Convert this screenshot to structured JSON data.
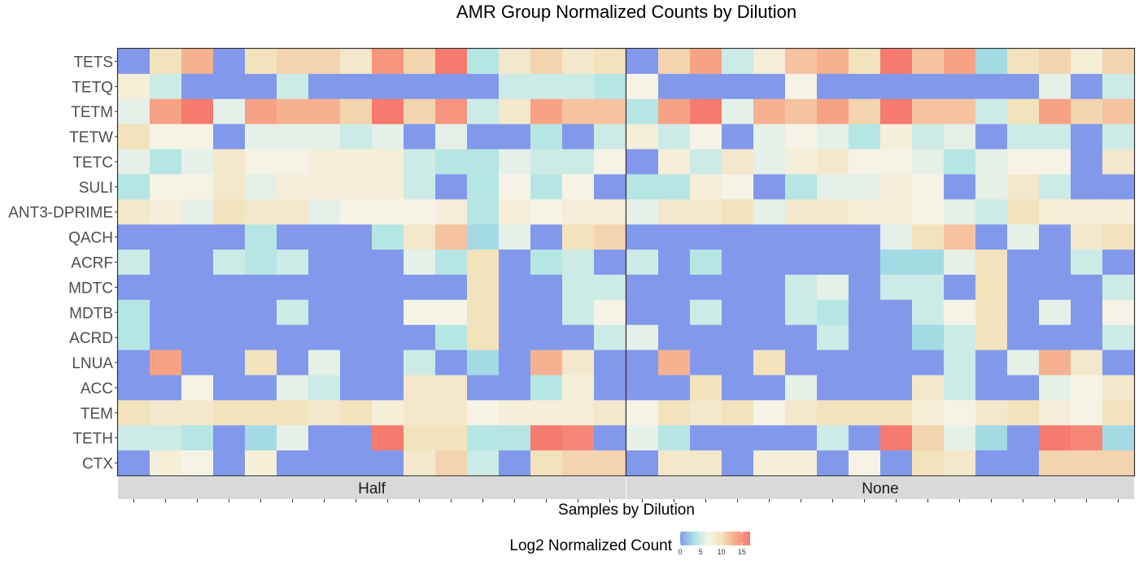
{
  "chart_data": {
    "type": "heatmap",
    "title": "AMR Group Normalized Counts by Dilution",
    "xlabel": "Samples by Dilution",
    "ylabel": "",
    "rows": [
      "TETS",
      "TETQ",
      "TETM",
      "TETW",
      "TETC",
      "SULI",
      "ANT3-DPRIME",
      "QACH",
      "ACRF",
      "MDTC",
      "MDTB",
      "ACRD",
      "LNUA",
      "ACC",
      "TEM",
      "TETH",
      "CTX"
    ],
    "panels": [
      {
        "name": "Half",
        "values": [
          [
            0,
            10,
            13,
            0,
            10,
            11,
            11,
            9,
            15,
            11,
            17,
            4,
            9,
            11,
            9,
            10
          ],
          [
            8,
            5,
            0,
            0,
            0,
            5,
            0,
            0,
            0,
            0,
            0,
            0,
            5,
            5,
            5,
            4
          ],
          [
            6,
            14,
            17,
            6,
            14,
            13,
            13,
            11,
            17,
            11,
            15,
            5,
            9,
            14,
            12,
            12
          ],
          [
            10,
            7,
            7,
            0,
            6,
            6,
            6,
            5,
            6,
            0,
            6,
            0,
            0,
            4,
            0,
            5
          ],
          [
            6,
            4,
            6,
            9,
            7,
            7,
            8,
            8,
            8,
            5,
            4,
            4,
            6,
            5,
            5,
            7
          ],
          [
            4,
            7,
            7,
            9,
            6,
            8,
            8,
            8,
            8,
            5,
            0,
            4,
            7,
            4,
            7,
            0
          ],
          [
            9,
            8,
            6,
            10,
            9,
            9,
            6,
            7,
            7,
            7,
            8,
            4,
            8,
            7,
            8,
            8
          ],
          [
            0,
            0,
            0,
            0,
            4,
            0,
            0,
            0,
            4,
            9,
            12,
            3,
            6,
            0,
            10,
            11
          ],
          [
            5,
            0,
            0,
            5,
            4,
            5,
            0,
            0,
            0,
            6,
            4,
            10,
            0,
            4,
            5,
            0
          ],
          [
            0,
            0,
            0,
            0,
            0,
            0,
            0,
            0,
            0,
            0,
            0,
            10,
            0,
            0,
            5,
            5
          ],
          [
            4,
            0,
            0,
            0,
            0,
            5,
            0,
            0,
            0,
            7,
            7,
            10,
            0,
            0,
            5,
            7
          ],
          [
            4,
            0,
            0,
            0,
            0,
            0,
            0,
            0,
            0,
            0,
            4,
            10,
            0,
            0,
            0,
            5
          ],
          [
            0,
            14,
            0,
            0,
            10,
            0,
            6,
            0,
            0,
            5,
            0,
            3,
            0,
            13,
            9,
            0
          ],
          [
            0,
            0,
            7,
            0,
            0,
            6,
            5,
            0,
            0,
            9,
            9,
            0,
            0,
            4,
            8,
            0
          ],
          [
            10,
            9,
            9,
            10,
            10,
            10,
            9,
            10,
            8,
            9,
            9,
            7,
            8,
            8,
            8,
            9
          ],
          [
            5,
            5,
            4,
            0,
            3,
            6,
            0,
            0,
            17,
            10,
            10,
            4,
            4,
            17,
            16,
            0
          ],
          [
            0,
            8,
            7,
            0,
            8,
            0,
            0,
            0,
            0,
            9,
            11,
            5,
            0,
            10,
            11,
            11
          ]
        ]
      },
      {
        "name": "None",
        "values": [
          [
            0,
            11,
            14,
            5,
            8,
            12,
            13,
            10,
            17,
            12,
            14,
            3,
            10,
            11,
            8,
            11
          ],
          [
            7,
            0,
            0,
            0,
            0,
            7,
            0,
            0,
            0,
            0,
            0,
            0,
            0,
            6,
            0,
            5
          ],
          [
            4,
            14,
            17,
            6,
            13,
            12,
            14,
            11,
            17,
            12,
            12,
            5,
            10,
            14,
            11,
            12
          ],
          [
            8,
            5,
            7,
            0,
            6,
            7,
            6,
            4,
            8,
            5,
            6,
            0,
            5,
            5,
            0,
            5
          ],
          [
            0,
            8,
            5,
            9,
            6,
            8,
            9,
            7,
            7,
            6,
            4,
            6,
            7,
            7,
            0,
            9
          ],
          [
            4,
            4,
            8,
            7,
            0,
            4,
            6,
            6,
            8,
            7,
            0,
            6,
            9,
            5,
            0,
            0
          ],
          [
            6,
            9,
            9,
            10,
            6,
            9,
            9,
            8,
            8,
            7,
            6,
            5,
            10,
            8,
            8,
            8
          ],
          [
            0,
            0,
            0,
            0,
            0,
            0,
            0,
            0,
            6,
            10,
            12,
            0,
            6,
            0,
            9,
            10
          ],
          [
            5,
            0,
            4,
            0,
            0,
            0,
            0,
            0,
            3,
            3,
            6,
            10,
            0,
            0,
            5,
            0
          ],
          [
            0,
            0,
            0,
            0,
            0,
            5,
            6,
            0,
            5,
            5,
            0,
            10,
            0,
            0,
            0,
            5
          ],
          [
            0,
            0,
            5,
            0,
            0,
            5,
            4,
            0,
            0,
            5,
            7,
            10,
            0,
            6,
            0,
            7
          ],
          [
            6,
            0,
            0,
            0,
            0,
            0,
            5,
            0,
            0,
            3,
            5,
            10,
            0,
            0,
            0,
            5
          ],
          [
            0,
            13,
            0,
            0,
            10,
            0,
            0,
            0,
            0,
            0,
            5,
            0,
            6,
            13,
            9,
            0
          ],
          [
            0,
            0,
            10,
            0,
            0,
            6,
            0,
            0,
            0,
            9,
            5,
            0,
            0,
            6,
            7,
            9
          ],
          [
            7,
            10,
            9,
            10,
            7,
            9,
            10,
            10,
            10,
            8,
            7,
            9,
            10,
            8,
            7,
            10
          ],
          [
            6,
            4,
            0,
            0,
            0,
            0,
            5,
            0,
            17,
            11,
            6,
            3,
            0,
            17,
            16,
            3
          ],
          [
            0,
            9,
            9,
            0,
            8,
            8,
            0,
            7,
            0,
            10,
            9,
            0,
            0,
            11,
            11,
            11
          ]
        ]
      }
    ],
    "colorbar": {
      "title": "Log2 Normalized Count",
      "min": 0,
      "max": 17,
      "ticks": [
        0,
        5,
        10,
        15
      ],
      "colors": [
        "#8299eb",
        "#a8e3e3",
        "#f6f4e9",
        "#f2e2ba",
        "#f7a788",
        "#f67a6e"
      ]
    },
    "legend_position": "bottom",
    "grid": false
  }
}
